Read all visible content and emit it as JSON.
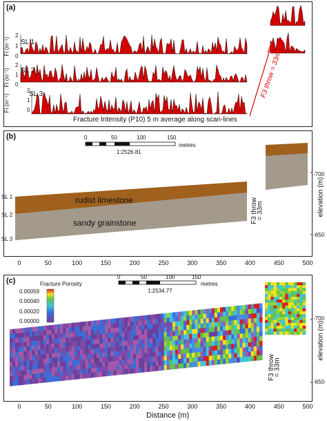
{
  "panel_a": {
    "letter": "(a)",
    "ylabel": "FI (m⁻¹)",
    "scanlines": [
      {
        "label": "SL 1",
        "ticks": [
          "2",
          "1",
          "0"
        ]
      },
      {
        "label": "SL 2",
        "ticks": [
          "2",
          "1",
          "0"
        ]
      },
      {
        "label": "SL 3",
        "ticks": [
          "2",
          "1",
          "0"
        ]
      }
    ],
    "caption": "Fracture Intensity (P10) 5 m average along scan-lines",
    "throw_label": "F3 throw = 33m",
    "colors": {
      "fill": "#d40000",
      "stroke": "#111111",
      "throw_line": "#d40000"
    }
  },
  "panel_b": {
    "letter": "(b)",
    "scale_ticks": [
      "0",
      "50",
      "100",
      "150"
    ],
    "scale_unit": "metres",
    "scale_ratio": "1:2526.81",
    "unit_top": "rudist limestone",
    "unit_bottom": "sandy grainstone",
    "scanline_labels": [
      "SL 1",
      "SL 2",
      "SL 3"
    ],
    "throw_label": [
      "F3 throw",
      "= 33m"
    ],
    "elevation_ticks": [
      "-700",
      "-650"
    ],
    "elevation_label": "elevation (m)",
    "colors": {
      "limestone": "#a0601e",
      "grainstone": "#a39a8c"
    }
  },
  "panel_c": {
    "letter": "(c)",
    "legend_title": "Fracture Porosity",
    "legend_ticks": [
      "0.00059",
      "0.00040",
      "0.00020",
      "0.00000"
    ],
    "scale_ticks": [
      "0",
      "50",
      "100",
      "150"
    ],
    "scale_unit": "metres",
    "scale_ratio": "1:2534.77",
    "throw_label": [
      "F3 throw",
      "= 33m"
    ],
    "elevation_ticks": [
      "-700",
      "-650"
    ],
    "elevation_label": "elevation (m)"
  },
  "x_axis": {
    "ticks": [
      "0",
      "50",
      "100",
      "150",
      "200",
      "250",
      "300",
      "350",
      "400",
      "450",
      "500"
    ],
    "label": "Distance (m)"
  }
}
